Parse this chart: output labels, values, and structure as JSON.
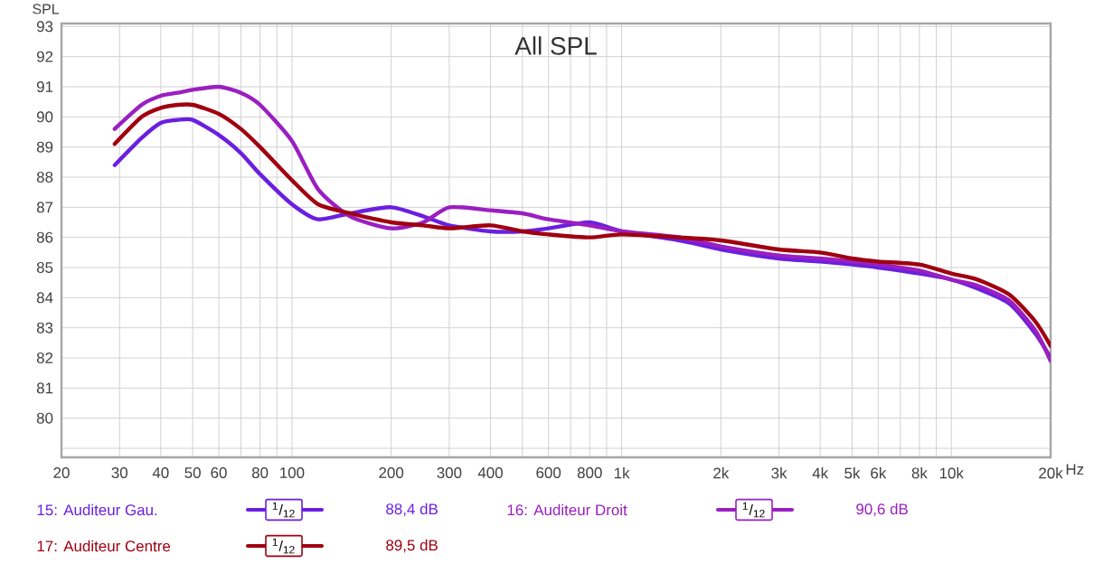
{
  "chart_data": {
    "type": "line",
    "title": "All SPL",
    "ylabel": "SPL",
    "xlabel": "Hz",
    "x": [
      29,
      35,
      40,
      45,
      50,
      60,
      70,
      80,
      100,
      120,
      150,
      200,
      250,
      300,
      400,
      500,
      600,
      800,
      1000,
      1500,
      2000,
      3000,
      4000,
      5000,
      6000,
      8000,
      10000,
      12000,
      15000,
      18000,
      20000
    ],
    "series": [
      {
        "name": "15: Auditeur Gau.",
        "color": "#6a1fe0",
        "values": [
          88.4,
          89.3,
          89.8,
          89.9,
          89.9,
          89.4,
          88.8,
          88.1,
          87.1,
          86.6,
          86.8,
          87.0,
          86.7,
          86.4,
          86.2,
          86.2,
          86.3,
          86.5,
          86.2,
          85.9,
          85.6,
          85.3,
          85.2,
          85.1,
          85.0,
          84.8,
          84.6,
          84.3,
          83.8,
          82.8,
          82.0
        ]
      },
      {
        "name": "16: Auditeur Droit",
        "color": "#9a1fc0",
        "values": [
          89.6,
          90.4,
          90.7,
          90.8,
          90.9,
          91.0,
          90.8,
          90.4,
          89.2,
          87.6,
          86.7,
          86.3,
          86.5,
          87.0,
          86.9,
          86.8,
          86.6,
          86.4,
          86.2,
          86.0,
          85.7,
          85.4,
          85.3,
          85.2,
          85.1,
          84.9,
          84.6,
          84.4,
          83.9,
          82.9,
          81.9
        ]
      },
      {
        "name": "17: Auditeur Centre",
        "color": "#a00010",
        "values": [
          89.1,
          90.0,
          90.3,
          90.4,
          90.4,
          90.1,
          89.6,
          89.0,
          87.9,
          87.1,
          86.8,
          86.5,
          86.4,
          86.3,
          86.4,
          86.2,
          86.1,
          86.0,
          86.1,
          86.0,
          85.9,
          85.6,
          85.5,
          85.3,
          85.2,
          85.1,
          84.8,
          84.6,
          84.1,
          83.2,
          82.4
        ]
      }
    ],
    "log": "x",
    "xlim": [
      20,
      20000
    ],
    "ylim": [
      78.7,
      93.1
    ],
    "xticks": [
      20,
      30,
      40,
      50,
      60,
      {
        "value": 70,
        "label": null
      },
      80,
      {
        "value": 90,
        "label": null
      },
      100,
      200,
      300,
      400,
      {
        "value": 500,
        "label": null
      },
      600,
      {
        "value": 700,
        "label": null
      },
      800,
      {
        "value": 900,
        "label": null
      },
      {
        "value": 1000,
        "label": "1k"
      },
      {
        "value": 2000,
        "label": "2k"
      },
      {
        "value": 3000,
        "label": "3k"
      },
      {
        "value": 4000,
        "label": "4k"
      },
      {
        "value": 5000,
        "label": "5k"
      },
      {
        "value": 6000,
        "label": "6k"
      },
      {
        "value": 7000,
        "label": null
      },
      {
        "value": 8000,
        "label": "8k"
      },
      {
        "value": 9000,
        "label": null
      },
      {
        "value": 10000,
        "label": "10k"
      },
      {
        "value": 20000,
        "label": "20k"
      }
    ],
    "yticks": [
      {
        "value": 79,
        "label": null
      },
      80,
      81,
      82,
      83,
      84,
      85,
      86,
      87,
      88,
      89,
      90,
      91,
      92,
      93
    ],
    "grid": true,
    "legend": "bottom",
    "marker": "none",
    "line_style": "solid",
    "annotations": [
      "$^{1}$/$_{12}$",
      "88,4 dB",
      "$^{1}$/$_{12}$",
      "90,6 dB",
      "$^{1}$/$_{12}$",
      "89,5 dB"
    ]
  }
}
